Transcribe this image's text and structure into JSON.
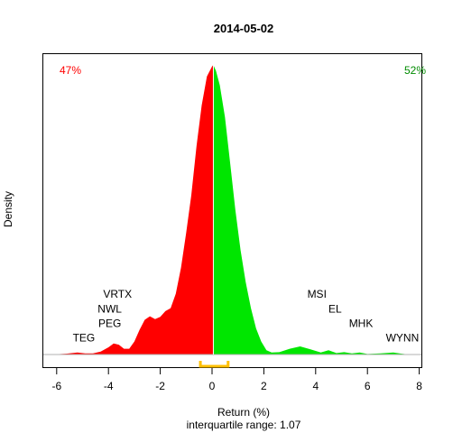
{
  "chart_data": {
    "type": "area",
    "title": "2014-05-02",
    "xlabel": "Return (%)",
    "ylabel": "Density",
    "subtitle": "interquartile range: 1.07",
    "xlim": [
      -6.2,
      8.2
    ],
    "ylim": [
      0,
      1.0
    ],
    "xticks": [
      "-6",
      "-4",
      "-2",
      "0",
      "2",
      "4",
      "6",
      "8"
    ],
    "split_at": 0.05,
    "left_pct": "47%",
    "right_pct": "52%",
    "colors": {
      "left": "#ff0000",
      "right": "#00e600",
      "left_pct": "#ff0000",
      "right_pct": "#008b00",
      "iqr": "#ffc000"
    },
    "iqr": [
      -0.45,
      0.62
    ],
    "density": {
      "x": [
        -6.2,
        -5.6,
        -5.2,
        -4.9,
        -4.6,
        -4.3,
        -4.0,
        -3.8,
        -3.6,
        -3.4,
        -3.2,
        -3.0,
        -2.8,
        -2.6,
        -2.4,
        -2.2,
        -2.0,
        -1.8,
        -1.6,
        -1.4,
        -1.2,
        -1.0,
        -0.8,
        -0.6,
        -0.4,
        -0.2,
        0.0,
        0.05,
        0.15,
        0.3,
        0.5,
        0.7,
        0.9,
        1.1,
        1.3,
        1.5,
        1.7,
        1.9,
        2.1,
        2.3,
        2.6,
        3.0,
        3.4,
        3.8,
        4.2,
        4.5,
        4.8,
        5.1,
        5.4,
        5.7,
        6.0,
        6.5,
        7.0,
        7.3,
        7.6,
        8.2
      ],
      "y": [
        0.0,
        0.003,
        0.007,
        0.004,
        0.004,
        0.01,
        0.025,
        0.038,
        0.034,
        0.02,
        0.02,
        0.045,
        0.085,
        0.12,
        0.132,
        0.122,
        0.13,
        0.15,
        0.16,
        0.21,
        0.3,
        0.42,
        0.55,
        0.72,
        0.86,
        0.96,
        0.995,
        1.0,
        0.98,
        0.93,
        0.82,
        0.66,
        0.5,
        0.36,
        0.25,
        0.16,
        0.09,
        0.045,
        0.015,
        0.007,
        0.008,
        0.02,
        0.028,
        0.018,
        0.007,
        0.015,
        0.005,
        0.008,
        0.004,
        0.007,
        0.002,
        0.004,
        0.007,
        0.003,
        0.0,
        0.0
      ]
    },
    "annotations": [
      {
        "text": "TEG",
        "x": -4.95,
        "y": 0.045
      },
      {
        "text": "PEG",
        "x": -3.95,
        "y": 0.095
      },
      {
        "text": "NWL",
        "x": -3.95,
        "y": 0.145
      },
      {
        "text": "VRTX",
        "x": -3.65,
        "y": 0.197
      },
      {
        "text": "MSI",
        "x": 4.05,
        "y": 0.197
      },
      {
        "text": "EL",
        "x": 4.75,
        "y": 0.145
      },
      {
        "text": "MHK",
        "x": 5.75,
        "y": 0.095
      },
      {
        "text": "WYNN",
        "x": 7.35,
        "y": 0.045
      }
    ]
  }
}
